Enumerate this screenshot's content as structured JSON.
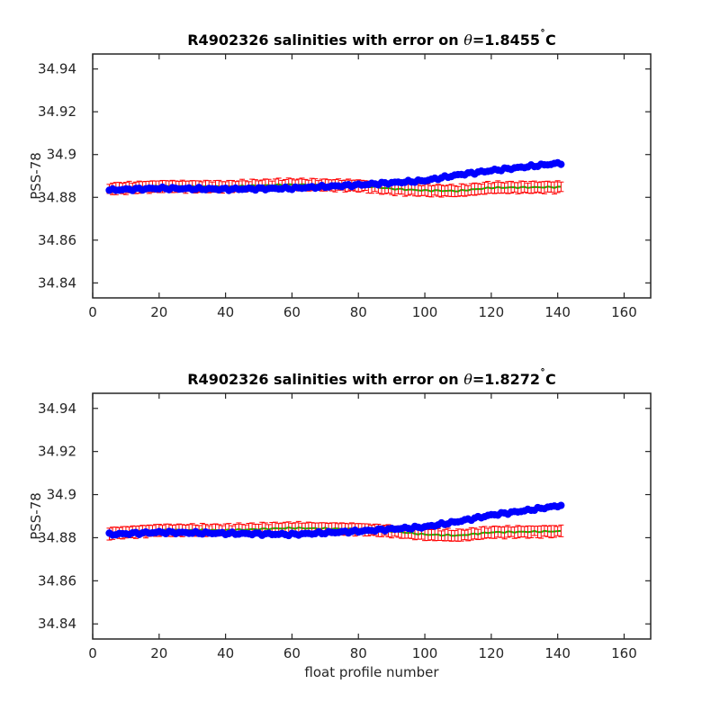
{
  "chart_data": [
    {
      "type": "scatter",
      "title": "R4902326 salinities with error on θ=1.8455˚C",
      "title_parts": {
        "prefix": "R4902326 salinities with error on ",
        "symbol": "θ",
        "suffix": "=1.8455",
        "degree": "˚",
        "unit": "C"
      },
      "xlabel": "",
      "ylabel": "PSS-78",
      "xlim": [
        0,
        168
      ],
      "ylim": [
        34.833,
        34.947
      ],
      "xticks": [
        0,
        20,
        40,
        60,
        80,
        100,
        120,
        140,
        160
      ],
      "yticks": [
        34.84,
        34.86,
        34.88,
        34.9,
        34.92,
        34.94
      ],
      "ytick_labels": [
        "34.84",
        "34.86",
        "34.88",
        "34.9",
        "34.92",
        "34.94"
      ],
      "grid": false,
      "series": [
        {
          "role": "float-salinity",
          "color": "#0000ff",
          "marker": "filled-circle",
          "anchors": [
            [
              5,
              34.8834
            ],
            [
              20,
              34.8842
            ],
            [
              40,
              34.8838
            ],
            [
              60,
              34.8842
            ],
            [
              80,
              34.8858
            ],
            [
              90,
              34.8868
            ],
            [
              100,
              34.8878
            ],
            [
              110,
              34.8905
            ],
            [
              120,
              34.8925
            ],
            [
              130,
              34.8942
            ],
            [
              141,
              34.896
            ]
          ],
          "gaps": [
            [
              20.5,
              22.5
            ]
          ]
        },
        {
          "role": "mapped-salinity",
          "color": "#00c000",
          "line": "solid",
          "anchors": [
            [
              5,
              34.884
            ],
            [
              20,
              34.8852
            ],
            [
              40,
              34.885
            ],
            [
              60,
              34.886
            ],
            [
              80,
              34.8855
            ],
            [
              90,
              34.884
            ],
            [
              100,
              34.8832
            ],
            [
              110,
              34.883
            ],
            [
              120,
              34.8845
            ],
            [
              141,
              34.8848
            ]
          ]
        },
        {
          "role": "mapped-error",
          "color": "#ff0000",
          "marker": "errorbar",
          "half_width": 0.0025
        }
      ]
    },
    {
      "type": "scatter",
      "title": "R4902326 salinities with error on θ=1.8272˚C",
      "title_parts": {
        "prefix": "R4902326 salinities with error on ",
        "symbol": "θ",
        "suffix": "=1.8272",
        "degree": "˚",
        "unit": "C"
      },
      "xlabel": "float profile number",
      "ylabel": "PSS-78",
      "xlim": [
        0,
        168
      ],
      "ylim": [
        34.833,
        34.947
      ],
      "xticks": [
        0,
        20,
        40,
        60,
        80,
        100,
        120,
        140,
        160
      ],
      "yticks": [
        34.84,
        34.86,
        34.88,
        34.9,
        34.92,
        34.94
      ],
      "ytick_labels": [
        "34.84",
        "34.86",
        "34.88",
        "34.9",
        "34.92",
        "34.94"
      ],
      "grid": false,
      "series": [
        {
          "role": "float-salinity",
          "color": "#0000ff",
          "marker": "filled-circle",
          "anchors": [
            [
              5,
              34.8815
            ],
            [
              20,
              34.8825
            ],
            [
              40,
              34.882
            ],
            [
              60,
              34.8815
            ],
            [
              80,
              34.883
            ],
            [
              90,
              34.884
            ],
            [
              100,
              34.885
            ],
            [
              110,
              34.8875
            ],
            [
              120,
              34.8905
            ],
            [
              130,
              34.8925
            ],
            [
              141,
              34.895
            ]
          ],
          "gaps": [
            [
              20.5,
              22.5
            ]
          ]
        },
        {
          "role": "mapped-salinity",
          "color": "#00c000",
          "line": "solid",
          "anchors": [
            [
              5,
              34.882
            ],
            [
              20,
              34.8835
            ],
            [
              40,
              34.8835
            ],
            [
              60,
              34.8845
            ],
            [
              80,
              34.884
            ],
            [
              90,
              34.883
            ],
            [
              100,
              34.8815
            ],
            [
              110,
              34.881
            ],
            [
              120,
              34.8825
            ],
            [
              141,
              34.883
            ]
          ]
        },
        {
          "role": "mapped-error",
          "color": "#ff0000",
          "marker": "errorbar",
          "half_width": 0.0025
        }
      ]
    }
  ]
}
